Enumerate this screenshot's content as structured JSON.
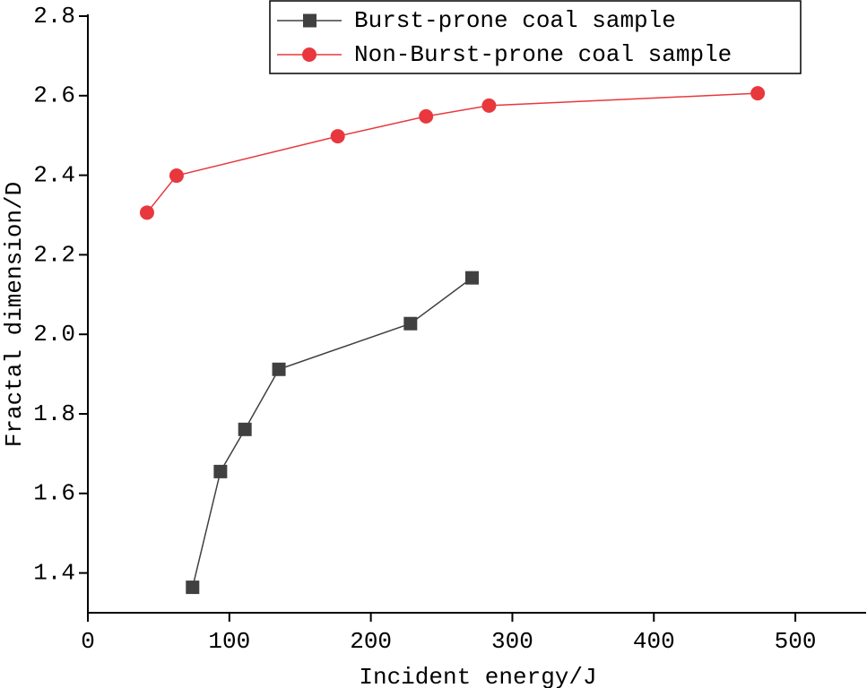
{
  "chart_data": {
    "type": "line",
    "x_label": "Incident energy/J",
    "y_label": "Fractal dimension/D",
    "xlim": [
      0,
      550
    ],
    "xticks": [
      0,
      100,
      200,
      300,
      400,
      500
    ],
    "ylim": [
      1.3,
      2.8
    ],
    "yticks": [
      1.4,
      1.6,
      1.8,
      {
        "value": 2,
        "label": "2.0"
      },
      2.2,
      2.4,
      2.6,
      2.8
    ],
    "legend": "top",
    "series": [
      {
        "name": "Burst-prone coal sample",
        "color": "#404040",
        "marker": "square",
        "x": [
          74,
          93.7,
          111,
          135,
          228,
          271.5
        ],
        "values": [
          1.364,
          1.655,
          1.761,
          1.912,
          2.027,
          2.142
        ]
      },
      {
        "name": "Non-Burst-prone coal sample",
        "color": "#e8383d",
        "marker": "circle",
        "x": [
          41.8,
          62.7,
          176.6,
          239,
          283.5,
          473.4
        ],
        "values": [
          2.306,
          2.399,
          2.498,
          2.548,
          2.575,
          2.606
        ]
      }
    ]
  }
}
